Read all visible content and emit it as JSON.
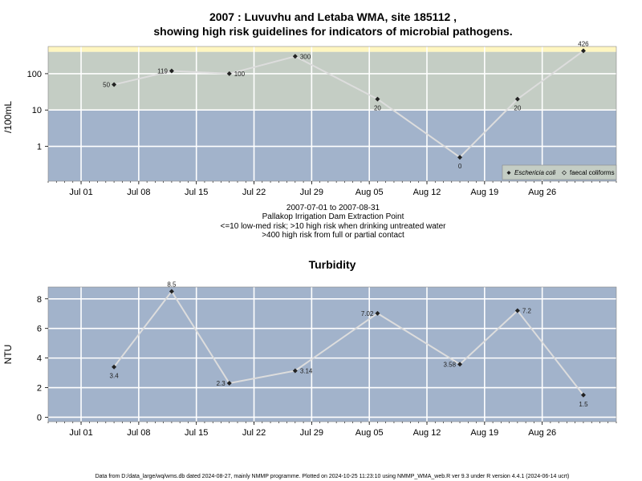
{
  "chart_data": [
    {
      "type": "line",
      "title": "2007 : Luvuvhu and Letaba WMA, site 185112 ,",
      "title_line2": "showing high risk guidelines for indicators of microbial pathogens.",
      "ylabel": "/100mL",
      "y_scale": "log",
      "ylim": [
        0.11,
        560
      ],
      "xlim": [
        "2007-06-27",
        "2007-09-04"
      ],
      "x_ticks": [
        {
          "date": "2007-07-01",
          "label": "Jul 01"
        },
        {
          "date": "2007-07-08",
          "label": "Jul 08"
        },
        {
          "date": "2007-07-15",
          "label": "Jul 15"
        },
        {
          "date": "2007-07-22",
          "label": "Jul 22"
        },
        {
          "date": "2007-07-29",
          "label": "Jul 29"
        },
        {
          "date": "2007-08-05",
          "label": "Aug 05"
        },
        {
          "date": "2007-08-12",
          "label": "Aug 12"
        },
        {
          "date": "2007-08-19",
          "label": "Aug 19"
        },
        {
          "date": "2007-08-26",
          "label": "Aug 26"
        }
      ],
      "y_ticks": [
        {
          "value": 1,
          "label": "1"
        },
        {
          "value": 10,
          "label": "10"
        },
        {
          "value": 100,
          "label": "100"
        }
      ],
      "risk_bands": [
        {
          "from": 0.11,
          "to": 10,
          "color": "#a2b3cb"
        },
        {
          "from": 10,
          "to": 400,
          "color": "#c4cdc4"
        },
        {
          "from": 400,
          "to": 560,
          "color": "#fff6c0"
        }
      ],
      "x": [
        "2007-07-05",
        "2007-07-12",
        "2007-07-19",
        "2007-07-27",
        "2007-08-06",
        "2007-08-16",
        "2007-08-23",
        "2007-08-31"
      ],
      "series": [
        {
          "name": "Eschericia coli",
          "plot_values": [
            50,
            119,
            100,
            300,
            20,
            0.5,
            20,
            426
          ],
          "labels": [
            "50",
            "119",
            "100",
            "300",
            "20",
            "0",
            "20",
            "426"
          ],
          "label_pos": [
            "left",
            "left",
            "right",
            "right",
            "below",
            "below",
            "below",
            "above"
          ]
        }
      ],
      "legend": {
        "position": "bottom-right",
        "entries": [
          "Eschericia coli",
          "faecal coliforms"
        ]
      },
      "sub_lines": [
        "2007-07-01 to 2007-08-31",
        "Pallakop Irrigation Dam Extraction Point",
        "<=10 low-med risk; >10 high risk when drinking untreated water",
        ">400 high risk from full or partial contact"
      ],
      "colors": {
        "line": "#dddddd",
        "point": "#222222",
        "grid": "#ffffff"
      }
    },
    {
      "type": "line",
      "title": "Turbidity",
      "ylabel": "NTU",
      "ylim": [
        -0.3,
        8.8
      ],
      "xlim": [
        "2007-06-27",
        "2007-09-04"
      ],
      "x_ticks": [
        {
          "date": "2007-07-01",
          "label": "Jul 01"
        },
        {
          "date": "2007-07-08",
          "label": "Jul 08"
        },
        {
          "date": "2007-07-15",
          "label": "Jul 15"
        },
        {
          "date": "2007-07-22",
          "label": "Jul 22"
        },
        {
          "date": "2007-07-29",
          "label": "Jul 29"
        },
        {
          "date": "2007-08-05",
          "label": "Aug 05"
        },
        {
          "date": "2007-08-12",
          "label": "Aug 12"
        },
        {
          "date": "2007-08-19",
          "label": "Aug 19"
        },
        {
          "date": "2007-08-26",
          "label": "Aug 26"
        }
      ],
      "y_ticks": [
        {
          "value": 0,
          "label": "0"
        },
        {
          "value": 2,
          "label": "2"
        },
        {
          "value": 4,
          "label": "4"
        },
        {
          "value": 6,
          "label": "6"
        },
        {
          "value": 8,
          "label": "8"
        }
      ],
      "x": [
        "2007-07-05",
        "2007-07-12",
        "2007-07-19",
        "2007-07-27",
        "2007-08-06",
        "2007-08-16",
        "2007-08-23",
        "2007-08-31"
      ],
      "series": [
        {
          "plot_values": [
            3.4,
            8.5,
            2.3,
            3.14,
            7.02,
            3.58,
            7.2,
            1.5
          ],
          "labels": [
            "3.4",
            "8.5",
            "2.3",
            "3.14",
            "7.02",
            "3.58",
            "7.2",
            "1.5"
          ],
          "label_pos": [
            "below",
            "above",
            "left",
            "right",
            "left",
            "left",
            "right",
            "below"
          ]
        }
      ],
      "colors": {
        "background": "#a2b3cb",
        "line": "#dddddd",
        "point": "#222222",
        "grid": "#ffffff"
      }
    }
  ],
  "footer": "Data from D:/data_large/wq/wms.db dated 2024-08-27, mainly NMMP programme. Plotted on 2024-10-25 11:23:10 using NMMP_WMA_web.R ver 9.3 under R version 4.4.1 (2024-06-14 ucrt)"
}
